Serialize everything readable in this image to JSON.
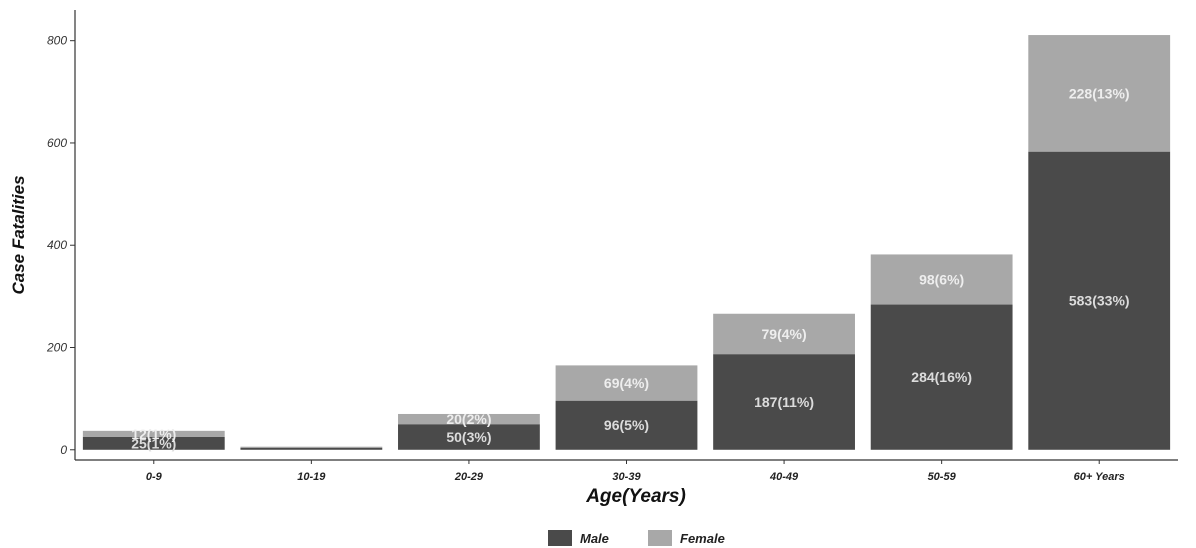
{
  "chart_data": {
    "type": "bar",
    "stacked": true,
    "categories": [
      "0-9",
      "10-19",
      "20-29",
      "30-39",
      "40-49",
      "50-59",
      "60+ Years"
    ],
    "series": [
      {
        "name": "Male",
        "color": "#4a4a4a",
        "values": [
          25,
          4,
          50,
          96,
          187,
          284,
          583
        ],
        "labels": [
          "25(1%)",
          "",
          "50(3%)",
          "96(5%)",
          "187(11%)",
          "284(16%)",
          "583(33%)"
        ]
      },
      {
        "name": "Female",
        "color": "#a8a8a8",
        "values": [
          12,
          2,
          20,
          69,
          79,
          98,
          228
        ],
        "labels": [
          "12(1%)",
          "",
          "20(2%)",
          "69(4%)",
          "79(4%)",
          "98(6%)",
          "228(13%)"
        ]
      }
    ],
    "title": "",
    "xlabel": "Age(Years)",
    "ylabel": "Case Fatalities",
    "ylim": [
      -20,
      860
    ],
    "yticks": [
      0,
      200,
      400,
      600,
      800
    ],
    "grid": false,
    "legend_position": "bottom"
  }
}
